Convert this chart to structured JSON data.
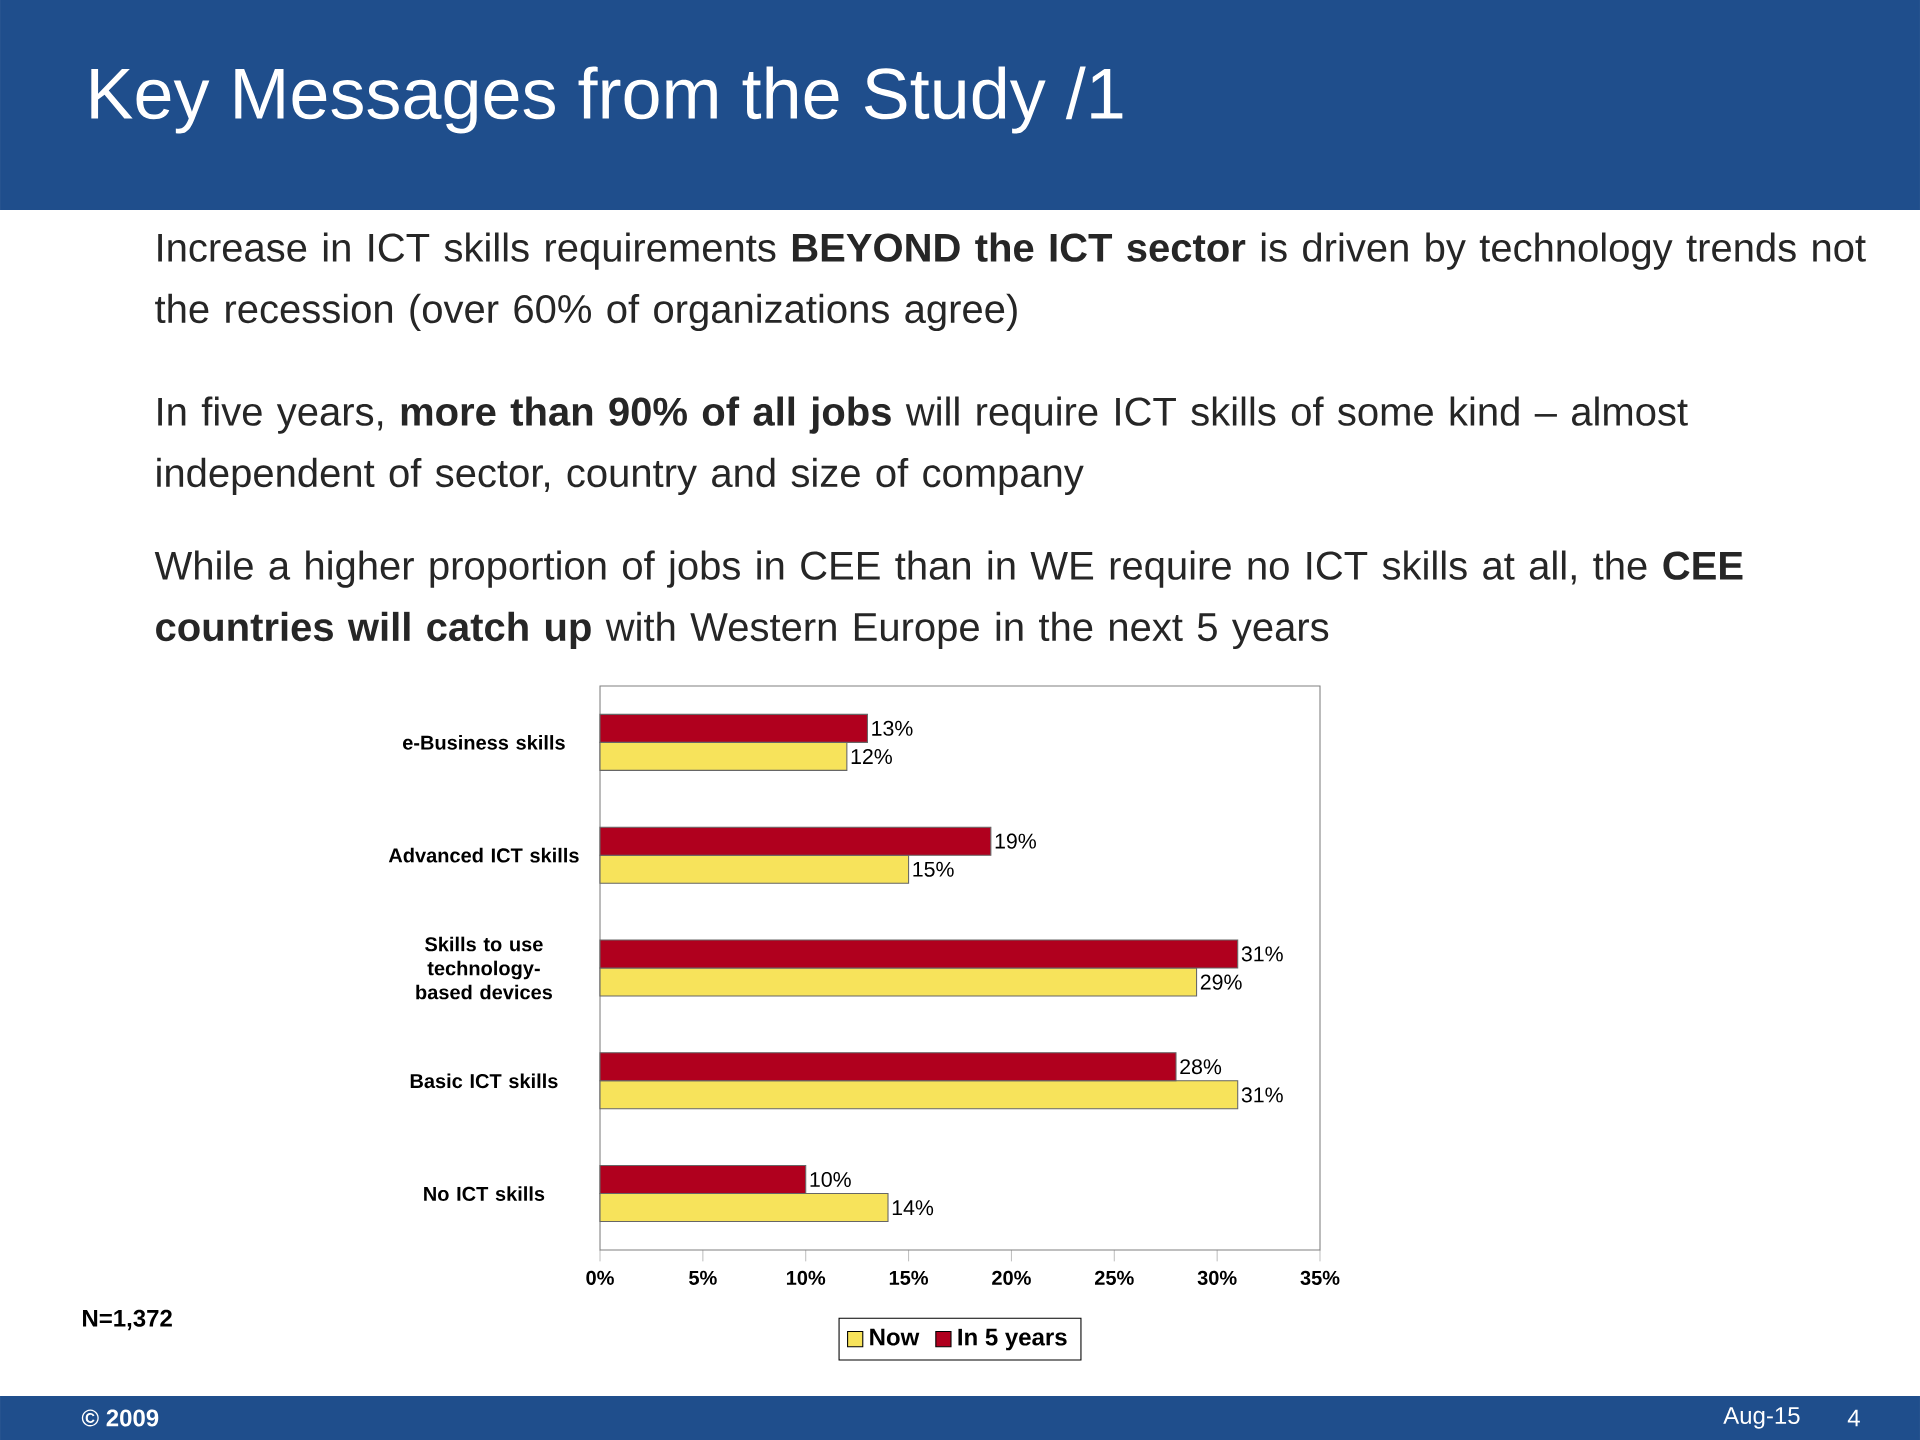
{
  "chart_data": {
    "type": "bar",
    "orientation": "horizontal",
    "title": "Key Messages from the Study /1",
    "categories": [
      "e-Business skills",
      "Advanced ICT skills",
      "Skills to use technology-based devices",
      "Basic ICT skills",
      "No ICT skills"
    ],
    "series": [
      {
        "name": "Now",
        "color": "#f7e35b",
        "values": [
          12,
          15,
          29,
          31,
          14
        ],
        "value_labels": [
          "12%",
          "15%",
          "29%",
          "31%",
          "14%"
        ]
      },
      {
        "name": "In 5 years",
        "color": "#b0001e",
        "values": [
          13,
          19,
          31,
          28,
          10
        ],
        "value_labels": [
          "13%",
          "19%",
          "31%",
          "28%",
          "10%"
        ]
      }
    ],
    "xlim": [
      0,
      35
    ],
    "xticks": [
      {
        "value": 0,
        "label": "0%"
      },
      {
        "value": 5,
        "label": "5%"
      },
      {
        "value": 10,
        "label": "10%"
      },
      {
        "value": 15,
        "label": "15%"
      },
      {
        "value": 20,
        "label": "20%"
      },
      {
        "value": 25,
        "label": "25%"
      },
      {
        "value": 30,
        "label": "30%"
      },
      {
        "value": 35,
        "label": "35%"
      }
    ],
    "legend": "bottom",
    "annotations": [
      "Increase in ICT skills requirements **BEYOND the ICT sector** is driven by technology trends not the recession (over 60% of organizations agree)",
      "In five years, **more than 90% of all jobs** will require ICT skills of some kind – almost independent of sector, country and size of company",
      "While a higher proportion of jobs in CEE than in WE require no ICT skills at all, the **CEE countries will catch up** with Western Europe in the next 5 years",
      "N=1,372",
      "© 2009",
      "Aug-15",
      "4"
    ]
  }
}
